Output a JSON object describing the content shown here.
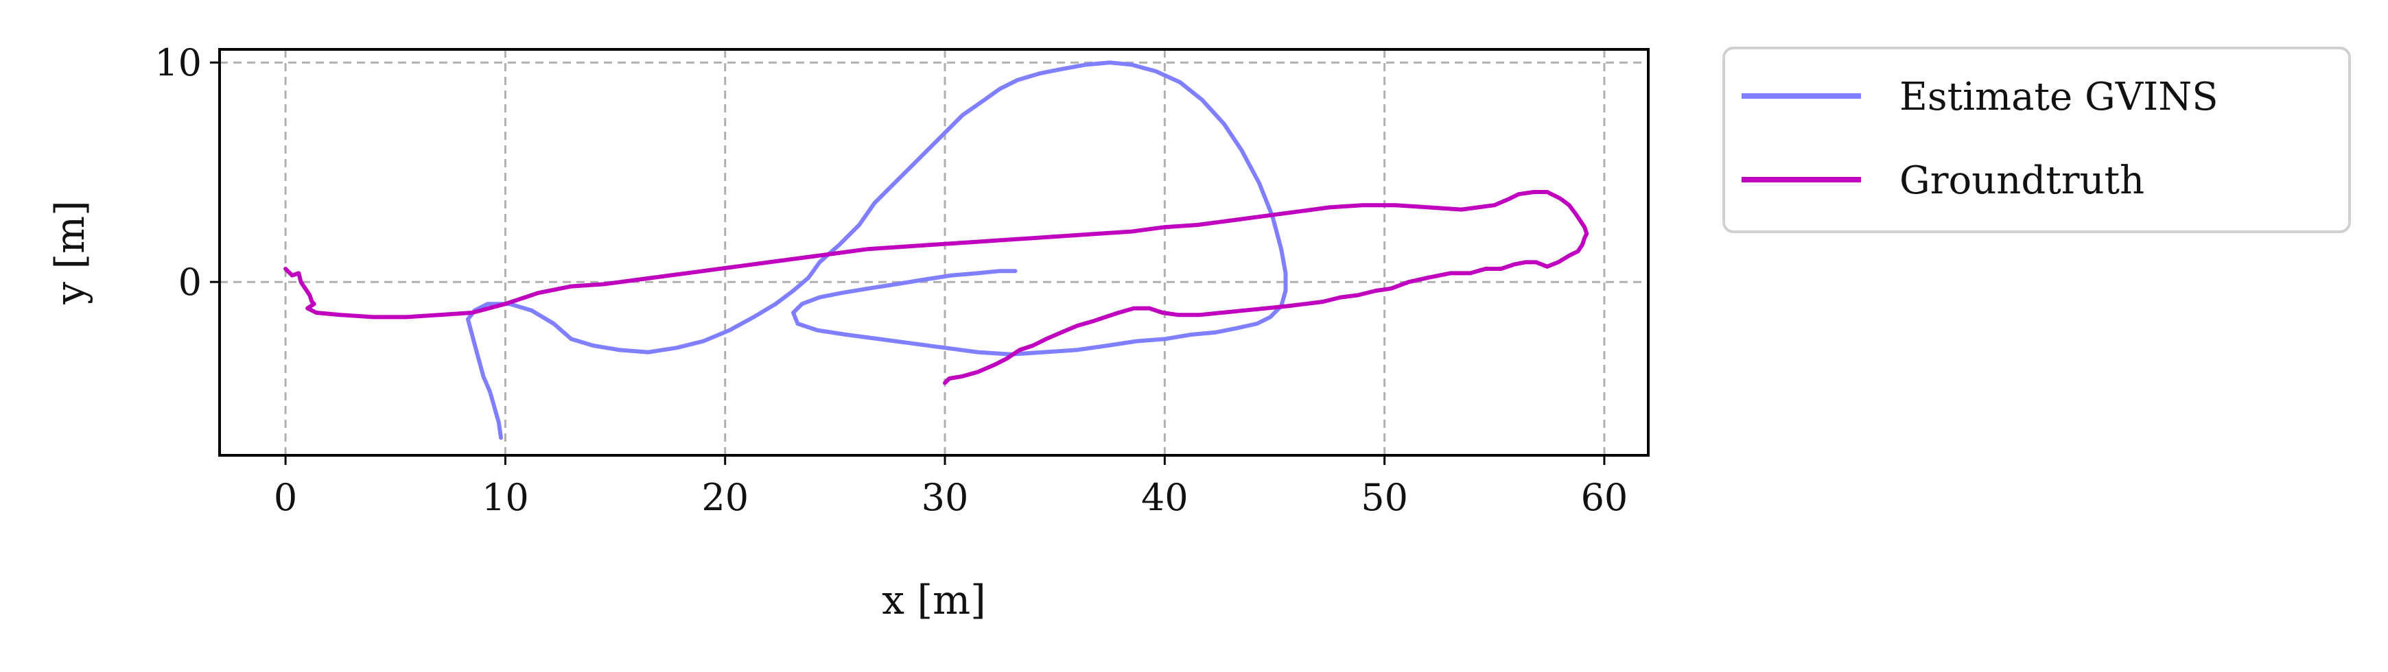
{
  "chart_data": {
    "type": "line",
    "title": "",
    "xlabel": "x [m]",
    "ylabel": "y [m]",
    "xlim": [
      -3,
      62
    ],
    "ylim": [
      -7.9,
      10.6
    ],
    "xticks": [
      0,
      10,
      20,
      30,
      40,
      50,
      60
    ],
    "yticks": [
      0,
      10
    ],
    "grid": true,
    "legend_position": "outside-top-right",
    "series": [
      {
        "name": "Estimate GVINS",
        "color": "#7f7fff",
        "x": [
          9.8,
          9.7,
          9.5,
          9.3,
          9.0,
          8.7,
          8.3,
          8.6,
          9.2,
          10.2,
          11.2,
          12.2,
          13.0,
          14.0,
          15.2,
          16.5,
          17.8,
          19.0,
          20.2,
          21.3,
          22.3,
          23.1,
          23.8,
          24.3,
          25.2,
          26.1,
          26.8,
          27.8,
          28.8,
          29.8,
          30.8,
          31.8,
          32.5,
          33.3,
          34.3,
          35.3,
          36.4,
          37.5,
          38.5,
          39.6,
          40.7,
          41.7,
          42.7,
          43.5,
          44.3,
          44.9,
          45.3,
          45.5,
          45.5,
          45.3,
          44.8,
          44.2,
          43.3,
          42.3,
          41.2,
          40.0,
          38.7,
          37.4,
          36.0,
          34.5,
          33.0,
          31.5,
          30.0,
          28.5,
          27.0,
          25.5,
          24.2,
          23.3,
          23.1,
          23.5,
          24.3,
          25.3,
          26.5,
          27.8,
          29.0,
          30.3,
          31.5,
          32.5,
          33.2
        ],
        "y": [
          -7.1,
          -6.4,
          -5.7,
          -5.0,
          -4.3,
          -3.2,
          -1.7,
          -1.3,
          -1.0,
          -1.0,
          -1.3,
          -1.9,
          -2.6,
          -2.9,
          -3.1,
          -3.2,
          -3.0,
          -2.7,
          -2.2,
          -1.6,
          -1.0,
          -0.4,
          0.2,
          0.9,
          1.7,
          2.6,
          3.6,
          4.6,
          5.6,
          6.6,
          7.6,
          8.3,
          8.8,
          9.2,
          9.5,
          9.7,
          9.9,
          10.0,
          9.9,
          9.6,
          9.1,
          8.3,
          7.2,
          6.0,
          4.5,
          3.0,
          1.5,
          0.4,
          -0.4,
          -1.1,
          -1.6,
          -1.9,
          -2.1,
          -2.3,
          -2.4,
          -2.6,
          -2.7,
          -2.9,
          -3.1,
          -3.2,
          -3.3,
          -3.2,
          -3.0,
          -2.8,
          -2.6,
          -2.4,
          -2.2,
          -1.9,
          -1.4,
          -1.0,
          -0.7,
          -0.5,
          -0.3,
          -0.1,
          0.1,
          0.3,
          0.4,
          0.5,
          0.5
        ]
      },
      {
        "name": "Groundtruth",
        "color": "#bf00bf",
        "x": [
          0.0,
          0.3,
          0.6,
          0.7,
          0.9,
          1.1,
          1.2,
          1.3,
          1.0,
          1.4,
          2.5,
          4.0,
          5.5,
          7.0,
          8.5,
          10.0,
          11.5,
          13.0,
          14.5,
          16.0,
          17.5,
          19.0,
          20.5,
          22.0,
          23.5,
          25.0,
          26.5,
          28.0,
          29.5,
          31.0,
          32.5,
          34.0,
          35.5,
          37.0,
          38.5,
          40.0,
          41.5,
          43.0,
          44.5,
          46.0,
          47.5,
          49.0,
          50.5,
          52.0,
          53.5,
          55.0,
          55.7,
          56.1,
          56.8,
          57.4,
          58.0,
          58.4,
          58.7,
          58.9,
          59.1,
          59.2,
          59.1,
          59.0,
          58.8,
          58.4,
          57.9,
          57.4,
          56.9,
          56.4,
          55.9,
          55.3,
          54.6,
          53.9,
          53.0,
          52.0,
          51.1,
          50.3,
          49.6,
          48.8,
          48.0,
          47.2,
          46.4,
          45.6,
          44.6,
          43.6,
          42.6,
          41.6,
          40.6,
          39.9,
          39.3,
          38.6,
          37.9,
          37.3,
          36.7,
          36.0,
          35.3,
          34.6,
          34.0,
          33.4,
          32.8,
          32.2,
          31.5,
          30.8,
          30.2,
          30.0
        ],
        "y": [
          0.6,
          0.3,
          0.4,
          0.0,
          -0.3,
          -0.6,
          -0.9,
          -1.0,
          -1.2,
          -1.4,
          -1.5,
          -1.6,
          -1.6,
          -1.5,
          -1.4,
          -1.0,
          -0.5,
          -0.2,
          -0.1,
          0.1,
          0.3,
          0.5,
          0.7,
          0.9,
          1.1,
          1.3,
          1.5,
          1.6,
          1.7,
          1.8,
          1.9,
          2.0,
          2.1,
          2.2,
          2.3,
          2.5,
          2.6,
          2.8,
          3.0,
          3.2,
          3.4,
          3.5,
          3.5,
          3.4,
          3.3,
          3.5,
          3.8,
          4.0,
          4.1,
          4.1,
          3.8,
          3.5,
          3.1,
          2.8,
          2.5,
          2.2,
          2.0,
          1.7,
          1.4,
          1.2,
          0.9,
          0.7,
          0.9,
          0.9,
          0.8,
          0.6,
          0.6,
          0.4,
          0.4,
          0.2,
          0.0,
          -0.3,
          -0.4,
          -0.6,
          -0.7,
          -0.9,
          -1.0,
          -1.1,
          -1.2,
          -1.3,
          -1.4,
          -1.5,
          -1.5,
          -1.4,
          -1.2,
          -1.2,
          -1.4,
          -1.6,
          -1.8,
          -2.0,
          -2.3,
          -2.6,
          -2.9,
          -3.1,
          -3.5,
          -3.8,
          -4.1,
          -4.3,
          -4.4,
          -4.6
        ]
      }
    ]
  }
}
